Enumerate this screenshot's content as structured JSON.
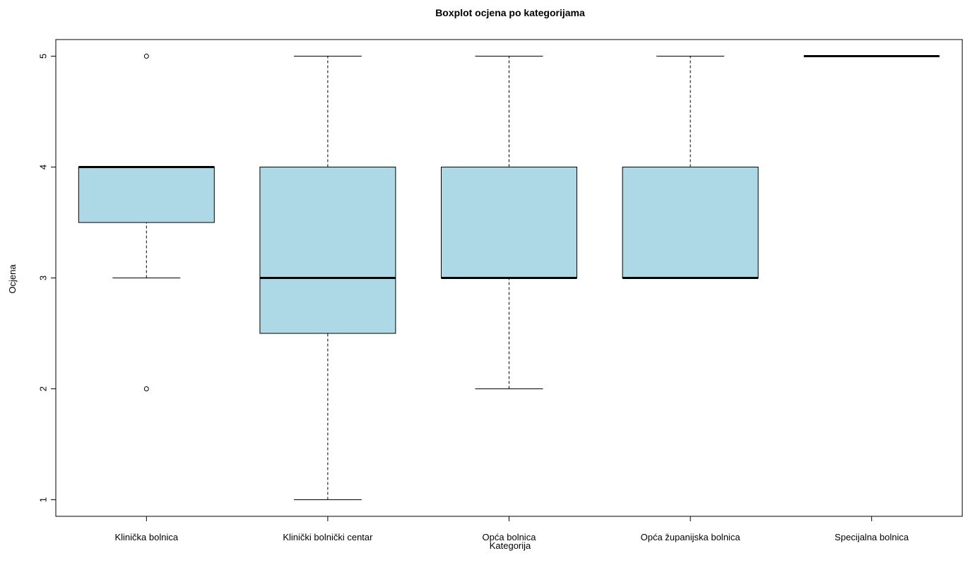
{
  "chart_data": {
    "type": "boxplot",
    "title": "Boxplot ocjena po kategorijama",
    "xlabel": "Kategorija",
    "ylabel": "Ocjena",
    "ylim": [
      0.85,
      5.15
    ],
    "yticks": [
      1,
      2,
      3,
      4,
      5
    ],
    "grid": false,
    "box_color": "#add8e6",
    "categories": [
      "Klinička bolnica",
      "Klinički bolnički centar",
      "Opća bolnica",
      "Opća županijska bolnica",
      "Specijalna bolnica"
    ],
    "boxes": [
      {
        "whisker_low": 3,
        "q1": 3.5,
        "median": 4,
        "q3": 4,
        "whisker_high": 4,
        "outliers": [
          2,
          5
        ]
      },
      {
        "whisker_low": 1,
        "q1": 2.5,
        "median": 3,
        "q3": 4,
        "whisker_high": 5,
        "outliers": []
      },
      {
        "whisker_low": 2,
        "q1": 3,
        "median": 3,
        "q3": 4,
        "whisker_high": 5,
        "outliers": []
      },
      {
        "whisker_low": 3,
        "q1": 3,
        "median": 3,
        "q3": 4,
        "whisker_high": 5,
        "outliers": []
      },
      {
        "whisker_low": 5,
        "q1": 5,
        "median": 5,
        "q3": 5,
        "whisker_high": 5,
        "outliers": []
      }
    ]
  }
}
